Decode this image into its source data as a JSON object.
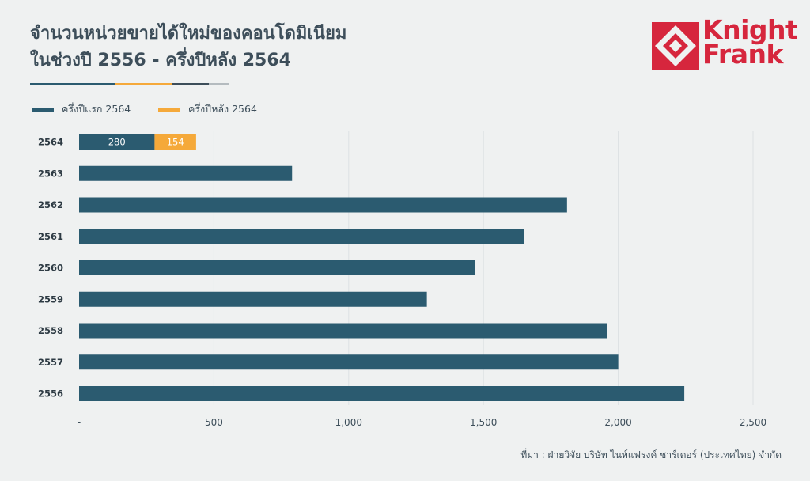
{
  "header": {
    "title_line1": "จำนวนหน่วยขายได้ใหม่ของคอนโดมิเนียม",
    "title_line2": "ในช่วงปี 2556 - ครึ่งปีหลัง 2564"
  },
  "logo": {
    "line1": "Knight",
    "line2": "Frank"
  },
  "colors": {
    "series_first_half": "#2b5b70",
    "series_second_half": "#f5a93a",
    "brand_red": "#d6263d",
    "text": "#3d4e5a",
    "grid": "#dde1e3"
  },
  "chart_data": {
    "type": "bar",
    "orientation": "horizontal",
    "stacked": true,
    "categories": [
      "2564",
      "2563",
      "2562",
      "2561",
      "2560",
      "2559",
      "2558",
      "2557",
      "2556"
    ],
    "series": [
      {
        "name": "ครึ่งปีแรก 2564",
        "values": [
          280,
          790,
          1810,
          1650,
          1470,
          1290,
          1960,
          2000,
          2245
        ]
      },
      {
        "name": "ครึ่งปีหลัง 2564",
        "values": [
          154,
          0,
          0,
          0,
          0,
          0,
          0,
          0,
          0
        ]
      }
    ],
    "data_labels": {
      "2564": [
        "280",
        "154"
      ]
    },
    "xlim": [
      0,
      2500
    ],
    "xticks": [
      0,
      500,
      1000,
      1500,
      2000,
      2500
    ],
    "xtick_labels": [
      "-",
      "500",
      "1,000",
      "1,500",
      "2,000",
      "2,500"
    ],
    "grid": "vertical",
    "legend_position": "top-left"
  },
  "footer": {
    "source": "ที่มา : ฝ่ายวิจัย บริษัท ไนท์แฟรงค์ ชาร์เตอร์ (ประเทศไทย) จำกัด"
  }
}
